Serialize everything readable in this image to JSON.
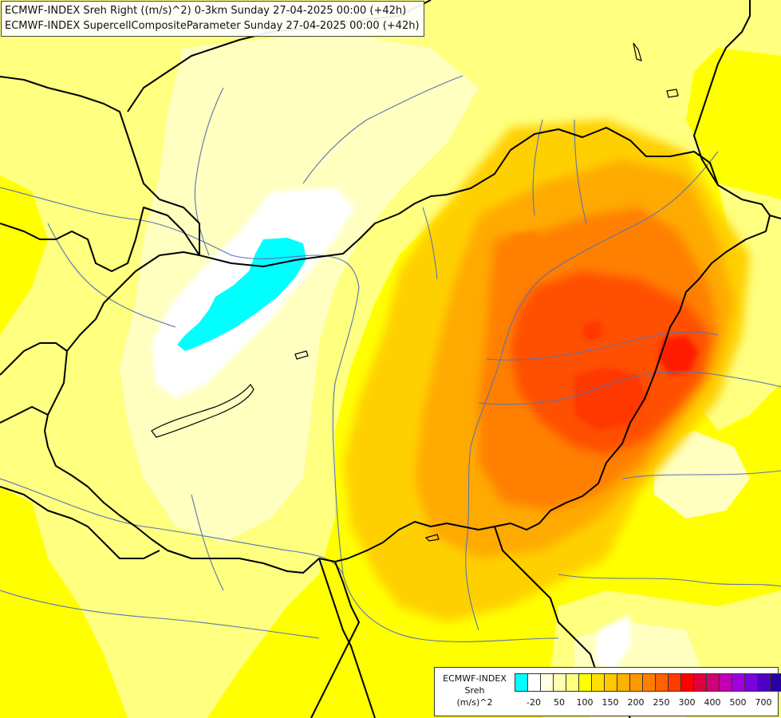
{
  "titles": {
    "line1": "ECMWF-INDEX Sreh Right ((m/s)^2) 0-3km Sunday 27-04-2025 00:00 (+42h)",
    "line2": "ECMWF-INDEX SupercellCompositeParameter Sunday 27-04-2025 00:00 (+42h)"
  },
  "legend": {
    "line1": "ECMWF-INDEX",
    "line2": "Sreh",
    "line3": "(m/s)^2",
    "colors": [
      "#00ffff",
      "#ffffff",
      "#ffffe0",
      "#ffffb0",
      "#ffff80",
      "#ffff00",
      "#ffe000",
      "#ffc800",
      "#ffb000",
      "#ff9800",
      "#ff8000",
      "#ff6000",
      "#ff3c00",
      "#ff0000",
      "#e0003c",
      "#d00078",
      "#c000b0",
      "#a000e0",
      "#7c00e0",
      "#5000c0",
      "#2a00a0"
    ],
    "ticks": [
      {
        "label": "-20",
        "at": 1
      },
      {
        "label": "50",
        "at": 3
      },
      {
        "label": "100",
        "at": 5
      },
      {
        "label": "150",
        "at": 7
      },
      {
        "label": "200",
        "at": 9
      },
      {
        "label": "250",
        "at": 11
      },
      {
        "label": "300",
        "at": 13
      },
      {
        "label": "400",
        "at": 15
      },
      {
        "label": "500",
        "at": 17
      },
      {
        "label": "700",
        "at": 19
      }
    ]
  },
  "palette": {
    "yellow": "#ffff00",
    "light_yellow": "#ffff80",
    "pale_yellow": "#ffffc0",
    "white": "#ffffff",
    "cyan": "#00ffff",
    "amber": "#ffd000",
    "orange": "#ffaa00",
    "deep_orange": "#ff8000",
    "red_orange": "#ff5000",
    "red": "#ff0000",
    "border": "#000000",
    "river": "#5a73b4"
  }
}
